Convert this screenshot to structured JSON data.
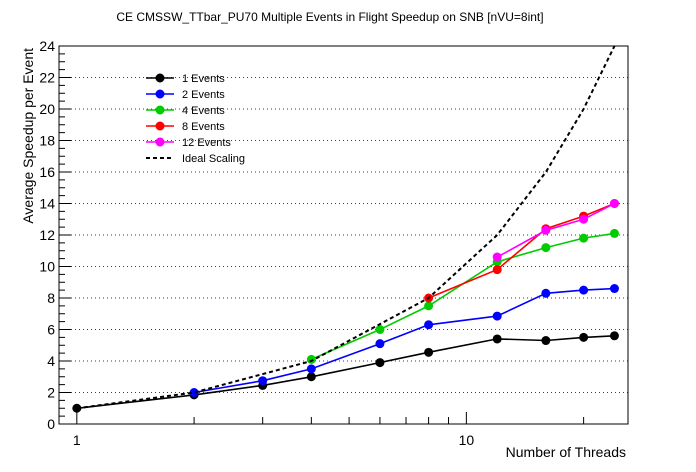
{
  "chart_data": {
    "type": "line",
    "title": "CE CMSSW_TTbar_PU70 Multiple Events in Flight Speedup on SNB [nVU=8int]",
    "xlabel": "Number of Threads",
    "ylabel": "Average Speedup per Event",
    "x_scale": "log",
    "xlim": [
      0.9,
      26
    ],
    "ylim": [
      0,
      24
    ],
    "x_tick_labels": [
      {
        "value": 1,
        "label": "1"
      },
      {
        "value": 10,
        "label": "10"
      }
    ],
    "y_ticks": [
      0,
      2,
      4,
      6,
      8,
      10,
      12,
      14,
      16,
      18,
      20,
      22,
      24
    ],
    "grid": "horizontal dotted",
    "legend_position": "top-left",
    "series": [
      {
        "name": "1 Events",
        "color": "#000000",
        "marker": "circle",
        "x": [
          1,
          2,
          3,
          4,
          6,
          8,
          12,
          16,
          20,
          24
        ],
        "y": [
          1.0,
          1.85,
          2.45,
          3.0,
          3.9,
          4.55,
          5.4,
          5.3,
          5.5,
          5.6
        ]
      },
      {
        "name": "2 Events",
        "color": "#0000ff",
        "marker": "circle",
        "x": [
          2,
          3,
          4,
          6,
          8,
          12,
          16,
          20,
          24
        ],
        "y": [
          2.0,
          2.75,
          3.5,
          5.1,
          6.3,
          6.85,
          8.3,
          8.5,
          8.6
        ]
      },
      {
        "name": "4 Events",
        "color": "#00cc00",
        "marker": "circle",
        "x": [
          4,
          6,
          8,
          12,
          16,
          20,
          24
        ],
        "y": [
          4.1,
          6.0,
          7.5,
          10.3,
          11.2,
          11.8,
          12.1
        ]
      },
      {
        "name": "8 Events",
        "color": "#ff0000",
        "marker": "circle",
        "x": [
          8,
          12,
          16,
          20,
          24
        ],
        "y": [
          8.0,
          9.8,
          12.4,
          13.2,
          14.0
        ]
      },
      {
        "name": "12 Events",
        "color": "#ff00ff",
        "marker": "circle",
        "x": [
          12,
          16,
          20,
          24
        ],
        "y": [
          10.6,
          12.3,
          13.0,
          14.0
        ]
      },
      {
        "name": "Ideal Scaling",
        "color": "#000000",
        "line_style": "dashed",
        "x": [
          1,
          2,
          4,
          8,
          12,
          16,
          20,
          24
        ],
        "y": [
          1,
          2,
          4,
          8,
          12,
          16,
          20,
          24
        ]
      }
    ]
  }
}
